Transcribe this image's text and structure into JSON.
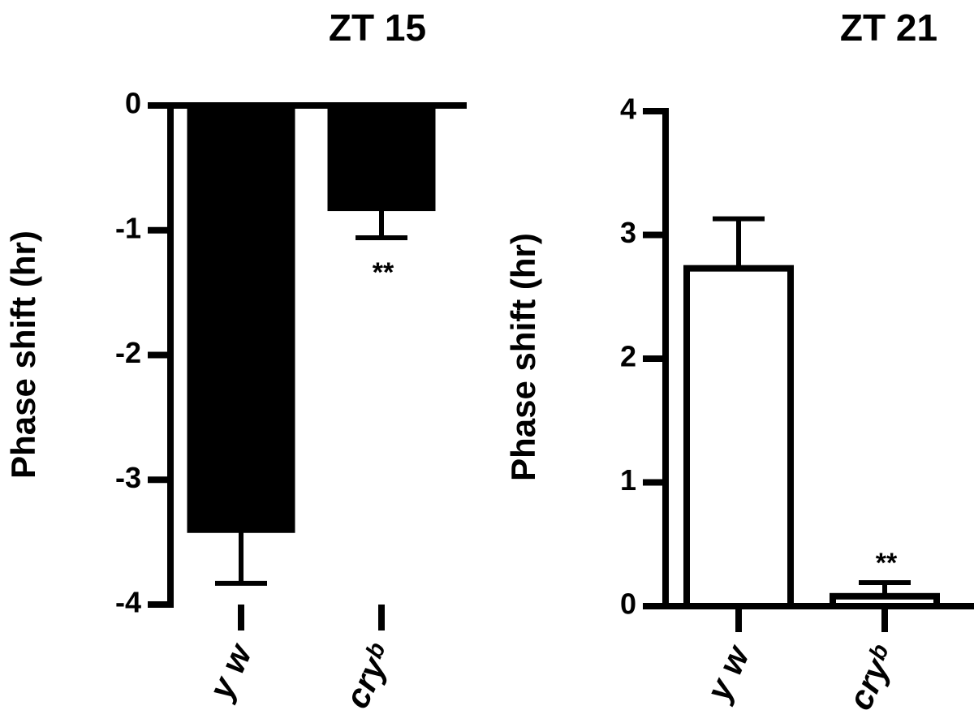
{
  "chart_data": [
    {
      "type": "bar",
      "title": "ZT 15",
      "ylabel": "Phase shift (hr)",
      "categories": [
        "y w",
        "cryᵇ"
      ],
      "values": [
        -3.4,
        -0.82
      ],
      "errors": [
        0.43,
        0.24
      ],
      "color": "#000000",
      "edgecolor": "#000000",
      "bar_annotations": [
        null,
        "**"
      ],
      "ylim": [
        -4,
        0
      ],
      "yticks": [
        0,
        -1,
        -2,
        -3,
        -4
      ]
    },
    {
      "type": "bar",
      "title": "ZT 21",
      "ylabel": "Phase shift (hr)",
      "categories": [
        "y w",
        "cryᵇ"
      ],
      "values": [
        2.73,
        0.08
      ],
      "errors": [
        0.4,
        0.11
      ],
      "color": "#ffffff",
      "edgecolor": "#000000",
      "bar_annotations": [
        null,
        "**"
      ],
      "ylim": [
        0,
        4
      ],
      "yticks": [
        0,
        1,
        2,
        3,
        4
      ]
    }
  ]
}
